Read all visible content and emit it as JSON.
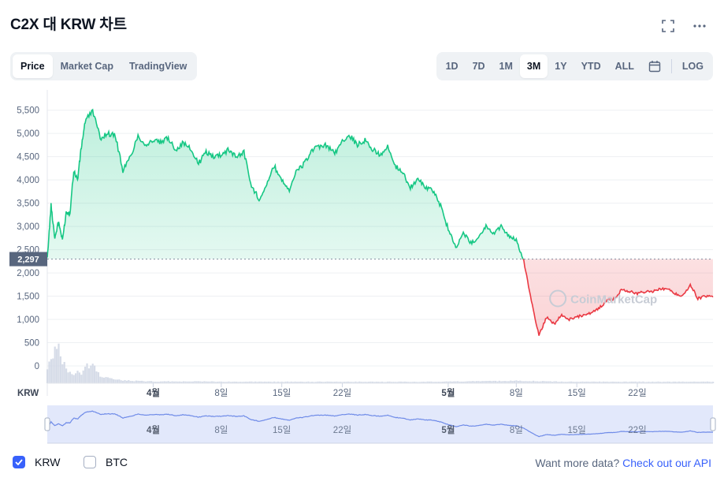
{
  "title": "C2X 대 KRW 차트",
  "tabs": [
    {
      "label": "Price",
      "active": true
    },
    {
      "label": "Market Cap",
      "active": false
    },
    {
      "label": "TradingView",
      "active": false
    }
  ],
  "ranges": [
    {
      "label": "1D",
      "active": false
    },
    {
      "label": "7D",
      "active": false
    },
    {
      "label": "1M",
      "active": false
    },
    {
      "label": "3M",
      "active": true
    },
    {
      "label": "1Y",
      "active": false
    },
    {
      "label": "YTD",
      "active": false
    },
    {
      "label": "ALL",
      "active": false
    }
  ],
  "log_label": "LOG",
  "icons": {
    "fullscreen": "fullscreen-icon",
    "more": "more-icon",
    "calendar": "calendar-icon"
  },
  "colors": {
    "up": "#16c784",
    "down": "#ea3943",
    "accent": "#3861fb"
  },
  "watermark": "CoinMarketCap",
  "currency_label": "KRW",
  "legend": {
    "krw": "KRW",
    "btc": "BTC",
    "krw_checked": true,
    "btc_checked": false
  },
  "footer": {
    "text": "Want more data?",
    "link": "Check out our API"
  },
  "chart_data": {
    "type": "line",
    "title": "C2X 대 KRW 차트",
    "ylabel": "",
    "xlabel": "",
    "ylim": [
      0,
      5800
    ],
    "yticks": [
      0,
      500,
      1000,
      1500,
      2000,
      2500,
      3000,
      3500,
      4000,
      4500,
      5000,
      5500
    ],
    "ytick_labels": [
      "0",
      "500",
      "1,000",
      "1,500",
      "2,000",
      "2,500",
      "3,000",
      "3,500",
      "4,000",
      "4,500",
      "5,000",
      "5,500"
    ],
    "baseline": 2297,
    "baseline_label": "2,297",
    "xlim": [
      0,
      88
    ],
    "xticks": [
      {
        "day": 14,
        "label": "4월",
        "bold": true
      },
      {
        "day": 23,
        "label": "8일",
        "bold": false
      },
      {
        "day": 31,
        "label": "15일",
        "bold": false
      },
      {
        "day": 39,
        "label": "22일",
        "bold": false
      },
      {
        "day": 53,
        "label": "5월",
        "bold": true
      },
      {
        "day": 62,
        "label": "8일",
        "bold": false
      },
      {
        "day": 70,
        "label": "15일",
        "bold": false
      },
      {
        "day": 78,
        "label": "22일",
        "bold": false
      }
    ],
    "price": {
      "x": [
        0,
        0.5,
        1,
        1.5,
        2,
        2.5,
        3,
        3.5,
        4,
        4.5,
        5,
        6,
        7,
        8,
        9,
        10,
        11,
        12,
        13,
        14,
        15,
        16,
        17,
        18,
        19,
        20,
        21,
        22,
        23,
        24,
        25,
        26,
        27,
        28,
        29,
        30,
        31,
        32,
        33,
        34,
        35,
        36,
        37,
        38,
        39,
        40,
        41,
        42,
        43,
        44,
        45,
        46,
        47,
        48,
        49,
        50,
        51,
        52,
        53,
        54,
        55,
        56,
        57,
        58,
        59,
        60,
        61,
        62,
        63,
        64,
        65,
        66,
        67,
        68,
        69,
        70,
        71,
        72,
        73,
        74,
        75,
        76,
        77,
        78,
        79,
        80,
        81,
        82,
        83,
        84,
        85,
        86,
        87,
        88
      ],
      "y": [
        2300,
        3450,
        2750,
        3100,
        2700,
        3300,
        3300,
        4200,
        4000,
        4700,
        5250,
        5500,
        4900,
        5000,
        4950,
        4200,
        4500,
        4950,
        4750,
        4850,
        4800,
        4900,
        4650,
        4800,
        4650,
        4350,
        4600,
        4500,
        4550,
        4650,
        4500,
        4600,
        3850,
        3600,
        3900,
        4300,
        4000,
        3800,
        4200,
        4350,
        4650,
        4700,
        4750,
        4550,
        4850,
        4950,
        4750,
        4850,
        4650,
        4550,
        4700,
        4300,
        4150,
        3850,
        4000,
        3850,
        3750,
        3450,
        2950,
        2550,
        2850,
        2650,
        2750,
        3000,
        2850,
        3000,
        2800,
        2700,
        2250,
        1400,
        650,
        1050,
        900,
        1100,
        1000,
        1050,
        1100,
        1150,
        1250,
        1400,
        1450,
        1650,
        1600,
        1550,
        1600,
        1600,
        1650,
        1650,
        1550,
        1500,
        1750,
        1450,
        1500,
        1480
      ]
    },
    "volume": {
      "x": [
        0,
        0.5,
        1,
        1.5,
        2,
        2.5,
        3,
        3.5,
        4,
        4.5,
        5,
        6,
        7,
        8,
        9,
        10,
        12,
        14,
        16,
        20,
        25,
        30,
        35,
        40,
        45,
        50,
        55,
        60,
        62,
        64,
        66,
        70,
        75,
        80,
        85,
        88
      ],
      "y": [
        0.45,
        0.7,
        0.85,
        1.0,
        0.6,
        0.4,
        0.3,
        0.25,
        0.35,
        0.25,
        0.45,
        0.5,
        0.2,
        0.15,
        0.1,
        0.08,
        0.06,
        0.05,
        0.05,
        0.05,
        0.04,
        0.04,
        0.04,
        0.04,
        0.04,
        0.04,
        0.05,
        0.06,
        0.07,
        0.06,
        0.05,
        0.04,
        0.04,
        0.04,
        0.04,
        0.04
      ]
    }
  }
}
